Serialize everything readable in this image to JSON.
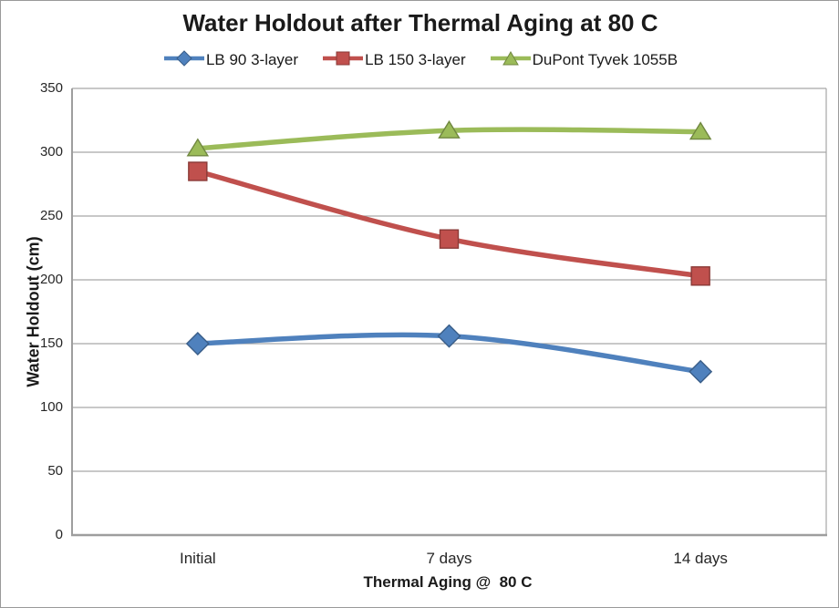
{
  "title": "Water Holdout after Thermal Aging at 80 C",
  "chart_data": {
    "type": "line",
    "categories": [
      "Initial",
      "7 days",
      "14 days"
    ],
    "series": [
      {
        "name": "LB 90 3-layer",
        "values": [
          150,
          156,
          128
        ],
        "color": "#4F81BD",
        "marker": "diamond"
      },
      {
        "name": "LB 150 3-layer",
        "values": [
          285,
          232,
          203
        ],
        "color": "#C0504D",
        "marker": "square"
      },
      {
        "name": "DuPont Tyvek 1055B",
        "values": [
          303,
          317,
          316
        ],
        "color": "#9BBB59",
        "marker": "triangle"
      }
    ],
    "xlabel": "Thermal Aging @  80 C",
    "ylabel": "Water Holdout (cm)",
    "ylim": [
      0,
      350
    ],
    "yticks": [
      0,
      50,
      100,
      150,
      200,
      250,
      300,
      350
    ],
    "grid": true,
    "legend_position": "top",
    "smoothed": true
  },
  "colors": {
    "gridline": "#a6a6a6",
    "axis_line": "#9e9e9e",
    "text": "#262626",
    "background": "#ffffff"
  }
}
